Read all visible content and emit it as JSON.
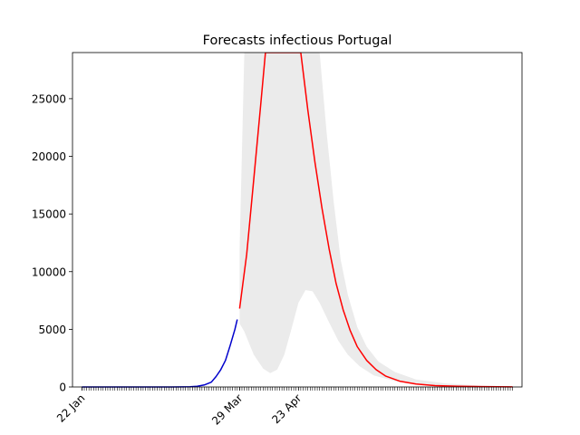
{
  "chart_data": {
    "type": "line",
    "title": "Forecasts infectious Portugal",
    "xlabel": "",
    "ylabel": "",
    "x_type": "date",
    "xlim": [
      "2020-01-18",
      "2020-07-27"
    ],
    "ylim": [
      0,
      29000
    ],
    "y_ticks": [
      0,
      5000,
      10000,
      15000,
      20000,
      25000
    ],
    "x_tick_labels": [
      {
        "date": "2020-01-22",
        "label": "22 Jan"
      },
      {
        "date": "2020-03-29",
        "label": "29 Mar"
      },
      {
        "date": "2020-04-23",
        "label": "23 Apr"
      }
    ],
    "minor_ticks": {
      "from": "2020-01-22",
      "to": "2020-07-23",
      "every_days": 1
    },
    "grid": false,
    "legend": "none",
    "colors": {
      "observed": "#0000cc",
      "forecast": "#ff0000",
      "band": "#ebebeb"
    },
    "series": [
      {
        "role": "observed",
        "points": [
          [
            "2020-01-22",
            0
          ],
          [
            "2020-02-29",
            0
          ],
          [
            "2020-03-05",
            5
          ],
          [
            "2020-03-08",
            20
          ],
          [
            "2020-03-11",
            60
          ],
          [
            "2020-03-14",
            170
          ],
          [
            "2020-03-17",
            420
          ],
          [
            "2020-03-19",
            900
          ],
          [
            "2020-03-21",
            1500
          ],
          [
            "2020-03-23",
            2300
          ],
          [
            "2020-03-25",
            3600
          ],
          [
            "2020-03-26",
            4300
          ],
          [
            "2020-03-27",
            5000
          ],
          [
            "2020-03-28",
            5850
          ]
        ]
      },
      {
        "role": "forecast",
        "points": [
          [
            "2020-03-29",
            6800
          ],
          [
            "2020-04-01",
            11500
          ],
          [
            "2020-04-04",
            18000
          ],
          [
            "2020-04-07",
            24500
          ],
          [
            "2020-04-09",
            29000
          ],
          [
            "2020-04-24",
            29000
          ],
          [
            "2020-04-27",
            24000
          ],
          [
            "2020-04-30",
            19500
          ],
          [
            "2020-05-03",
            15500
          ],
          [
            "2020-05-06",
            12000
          ],
          [
            "2020-05-09",
            9000
          ],
          [
            "2020-05-12",
            6700
          ],
          [
            "2020-05-15",
            4900
          ],
          [
            "2020-05-18",
            3500
          ],
          [
            "2020-05-22",
            2300
          ],
          [
            "2020-05-26",
            1500
          ],
          [
            "2020-05-30",
            950
          ],
          [
            "2020-06-05",
            500
          ],
          [
            "2020-06-12",
            250
          ],
          [
            "2020-06-20",
            120
          ],
          [
            "2020-06-30",
            60
          ],
          [
            "2020-07-10",
            30
          ],
          [
            "2020-07-23",
            10
          ]
        ]
      },
      {
        "role": "band",
        "upper": [
          [
            "2020-03-29",
            12000
          ],
          [
            "2020-03-31",
            29000
          ],
          [
            "2020-05-02",
            29000
          ],
          [
            "2020-05-05",
            22000
          ],
          [
            "2020-05-08",
            16000
          ],
          [
            "2020-05-11",
            11000
          ],
          [
            "2020-05-14",
            8000
          ],
          [
            "2020-05-18",
            5200
          ],
          [
            "2020-05-22",
            3500
          ],
          [
            "2020-05-27",
            2200
          ],
          [
            "2020-06-03",
            1300
          ],
          [
            "2020-06-12",
            650
          ],
          [
            "2020-06-25",
            300
          ],
          [
            "2020-07-10",
            120
          ],
          [
            "2020-07-23",
            50
          ]
        ],
        "lower": [
          [
            "2020-03-29",
            5500
          ],
          [
            "2020-03-31",
            4800
          ],
          [
            "2020-04-04",
            2800
          ],
          [
            "2020-04-08",
            1600
          ],
          [
            "2020-04-11",
            1200
          ],
          [
            "2020-04-14",
            1500
          ],
          [
            "2020-04-17",
            2800
          ],
          [
            "2020-04-20",
            5000
          ],
          [
            "2020-04-23",
            7300
          ],
          [
            "2020-04-26",
            8400
          ],
          [
            "2020-04-29",
            8300
          ],
          [
            "2020-05-02",
            7300
          ],
          [
            "2020-05-06",
            5600
          ],
          [
            "2020-05-10",
            4000
          ],
          [
            "2020-05-14",
            2800
          ],
          [
            "2020-05-19",
            1800
          ],
          [
            "2020-05-25",
            1000
          ],
          [
            "2020-06-03",
            500
          ],
          [
            "2020-06-15",
            200
          ],
          [
            "2020-06-30",
            80
          ],
          [
            "2020-07-23",
            20
          ]
        ]
      }
    ]
  }
}
